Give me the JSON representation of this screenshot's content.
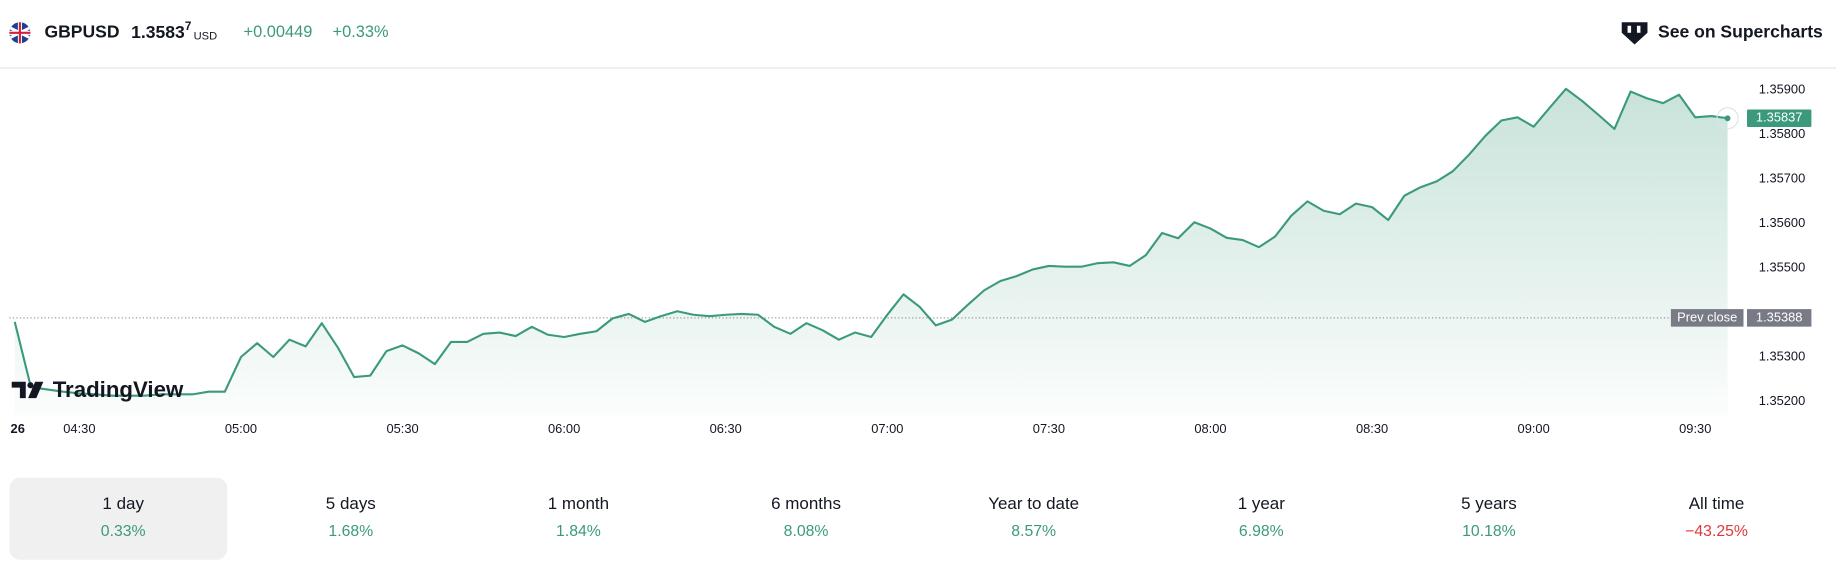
{
  "header": {
    "symbol": "GBPUSD",
    "price": "1.3583",
    "price_pip": "7",
    "currency": "USD",
    "change": "+0.00449",
    "change_percent": "+0.33%",
    "cta": "See on Supercharts"
  },
  "logo": "TradingView",
  "colors": {
    "up": "#3b9a7c",
    "down": "#e2373b"
  },
  "chart_data": {
    "type": "area",
    "color": "#3b9a7c",
    "date_label": "26",
    "x": [
      "04:18",
      "04:21",
      "04:24",
      "04:27",
      "04:30",
      "04:33",
      "04:36",
      "04:39",
      "04:42",
      "04:45",
      "04:48",
      "04:51",
      "04:54",
      "04:57",
      "05:00",
      "05:03",
      "05:06",
      "05:09",
      "05:12",
      "05:15",
      "05:18",
      "05:21",
      "05:24",
      "05:27",
      "05:30",
      "05:33",
      "05:36",
      "05:39",
      "05:42",
      "05:45",
      "05:48",
      "05:51",
      "05:54",
      "05:57",
      "06:00",
      "06:03",
      "06:06",
      "06:09",
      "06:12",
      "06:15",
      "06:18",
      "06:21",
      "06:24",
      "06:27",
      "06:30",
      "06:33",
      "06:36",
      "06:39",
      "06:42",
      "06:45",
      "06:48",
      "06:51",
      "06:54",
      "06:57",
      "07:00",
      "07:03",
      "07:06",
      "07:09",
      "07:12",
      "07:15",
      "07:18",
      "07:21",
      "07:24",
      "07:27",
      "07:30",
      "07:33",
      "07:36",
      "07:39",
      "07:42",
      "07:45",
      "07:48",
      "07:51",
      "07:54",
      "07:57",
      "08:00",
      "08:03",
      "08:06",
      "08:09",
      "08:12",
      "08:15",
      "08:18",
      "08:21",
      "08:24",
      "08:27",
      "08:30",
      "08:33",
      "08:36",
      "08:39",
      "08:42",
      "08:45",
      "08:48",
      "08:51",
      "08:54",
      "08:57",
      "09:00",
      "09:03",
      "09:06",
      "09:09",
      "09:12",
      "09:15",
      "09:18",
      "09:21",
      "09:24",
      "09:27",
      "09:30",
      "09:33",
      "09:36"
    ],
    "values": [
      1.35379,
      1.35232,
      1.35227,
      1.35222,
      1.35218,
      1.35216,
      1.35213,
      1.35213,
      1.35213,
      1.35216,
      1.35216,
      1.35216,
      1.35222,
      1.35222,
      1.353,
      1.35331,
      1.353,
      1.35339,
      1.35324,
      1.35376,
      1.35321,
      1.35255,
      1.35258,
      1.35313,
      1.35326,
      1.35308,
      1.35284,
      1.35334,
      1.35334,
      1.35352,
      1.35355,
      1.35347,
      1.35368,
      1.3535,
      1.35345,
      1.35352,
      1.35358,
      1.35387,
      1.35397,
      1.35379,
      1.35392,
      1.35403,
      1.35395,
      1.35392,
      1.35395,
      1.35397,
      1.35395,
      1.35368,
      1.35352,
      1.35376,
      1.3536,
      1.35339,
      1.35355,
      1.35345,
      1.35395,
      1.35441,
      1.35413,
      1.35371,
      1.35384,
      1.35418,
      1.3545,
      1.35471,
      1.35482,
      1.35497,
      1.35505,
      1.35503,
      1.35503,
      1.35511,
      1.35513,
      1.35505,
      1.35529,
      1.35579,
      1.35567,
      1.35603,
      1.35589,
      1.35568,
      1.35563,
      1.35547,
      1.35571,
      1.35618,
      1.3565,
      1.35629,
      1.35621,
      1.35645,
      1.35637,
      1.35608,
      1.35663,
      1.35682,
      1.35695,
      1.35718,
      1.35755,
      1.35797,
      1.35832,
      1.35839,
      1.35818,
      1.35861,
      1.35903,
      1.35876,
      1.35845,
      1.35813,
      1.35897,
      1.35882,
      1.35871,
      1.3589,
      1.35839,
      1.35842,
      1.35837
    ],
    "xlim": [
      "04:17",
      "09:37"
    ],
    "xticks": [
      "04:30",
      "05:00",
      "05:30",
      "06:00",
      "06:30",
      "07:00",
      "07:30",
      "08:00",
      "08:30",
      "09:00",
      "09:30"
    ],
    "ylim": [
      1.35168,
      1.35945
    ],
    "yticks": [
      {
        "value": 1.359,
        "label": "1.35900"
      },
      {
        "value": 1.358,
        "label": "1.35800"
      },
      {
        "value": 1.357,
        "label": "1.35700"
      },
      {
        "value": 1.356,
        "label": "1.35600"
      },
      {
        "value": 1.355,
        "label": "1.35500"
      },
      {
        "value": 1.353,
        "label": "1.35300"
      },
      {
        "value": 1.352,
        "label": "1.35200"
      }
    ],
    "prev_close_label": "Prev close",
    "prev_close": 1.35388
  },
  "periods": [
    {
      "label": "1 day",
      "change": "0.33%",
      "selected": true
    },
    {
      "label": "5 days",
      "change": "1.68%"
    },
    {
      "label": "1 month",
      "change": "1.84%"
    },
    {
      "label": "6 months",
      "change": "8.08%"
    },
    {
      "label": "Year to date",
      "change": "8.57%"
    },
    {
      "label": "1 year",
      "change": "6.98%"
    },
    {
      "label": "5 years",
      "change": "10.18%"
    },
    {
      "label": "All time",
      "change": "−43.25%"
    }
  ]
}
